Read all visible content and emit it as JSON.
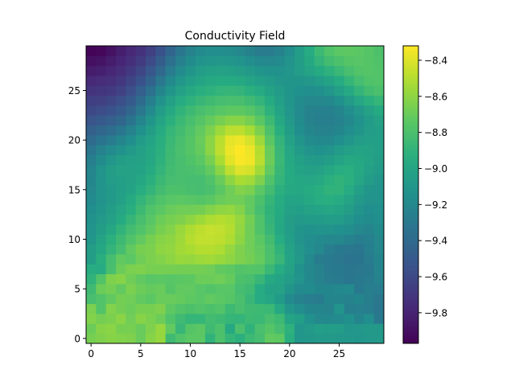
{
  "chart_data": {
    "type": "heatmap",
    "title": "Conductivity Field",
    "xlabel": "",
    "ylabel": "",
    "grid": false,
    "x_range": [
      0,
      29
    ],
    "y_range": [
      0,
      29
    ],
    "x_ticks": [
      0,
      5,
      10,
      15,
      20,
      25
    ],
    "y_ticks": [
      0,
      5,
      10,
      15,
      20,
      25
    ],
    "colormap": "viridis",
    "colorbar": {
      "position": "right",
      "range": [
        -9.97,
        -8.32
      ],
      "ticks": [
        -9.8,
        -9.6,
        -9.4,
        -9.2,
        -9.0,
        -8.8,
        -8.6,
        -8.4
      ]
    },
    "values": [
      [
        -8.66,
        -8.64,
        -8.62,
        -8.63,
        -8.64,
        -8.7,
        -8.62,
        -8.58,
        -8.84,
        -8.78,
        -8.74,
        -8.74,
        -8.9,
        -8.79,
        -8.88,
        -8.92,
        -8.85,
        -8.82,
        -8.72,
        -8.73,
        -8.93,
        -9.1,
        -9.09,
        -9.08,
        -9.08,
        -9.09,
        -9.09,
        -9.1,
        -9.09,
        -9.08
      ],
      [
        -8.69,
        -8.62,
        -8.61,
        -8.66,
        -8.66,
        -8.7,
        -8.64,
        -8.58,
        -8.72,
        -8.87,
        -8.76,
        -8.74,
        -8.84,
        -8.79,
        -8.97,
        -8.8,
        -8.9,
        -8.8,
        -8.76,
        -8.82,
        -8.91,
        -9.1,
        -9.08,
        -9.04,
        -9.06,
        -9.06,
        -9.1,
        -9.09,
        -9.08,
        -9.08
      ],
      [
        -8.63,
        -8.67,
        -8.65,
        -8.61,
        -8.68,
        -8.62,
        -8.65,
        -8.69,
        -8.78,
        -8.84,
        -8.88,
        -8.88,
        -8.83,
        -8.85,
        -8.88,
        -8.89,
        -8.85,
        -8.86,
        -8.81,
        -8.85,
        -9.01,
        -9.04,
        -9.14,
        -9.2,
        -9.19,
        -9.18,
        -9.14,
        -9.22,
        -9.16,
        -9.3
      ],
      [
        -8.65,
        -8.77,
        -8.63,
        -8.67,
        -8.69,
        -8.66,
        -8.66,
        -8.64,
        -8.73,
        -8.77,
        -8.79,
        -8.77,
        -8.79,
        -8.77,
        -8.85,
        -8.81,
        -8.84,
        -8.85,
        -8.86,
        -8.97,
        -9.1,
        -9.16,
        -9.21,
        -9.22,
        -9.23,
        -9.12,
        -9.26,
        -9.25,
        -9.27,
        -9.32
      ],
      [
        -8.81,
        -8.77,
        -8.72,
        -8.67,
        -8.68,
        -8.72,
        -8.74,
        -8.7,
        -8.7,
        -8.71,
        -8.73,
        -8.75,
        -8.72,
        -8.74,
        -8.76,
        -8.8,
        -8.87,
        -8.95,
        -8.99,
        -9.07,
        -9.18,
        -9.23,
        -9.27,
        -9.28,
        -9.21,
        -9.22,
        -9.24,
        -9.21,
        -9.26,
        -9.31
      ],
      [
        -8.84,
        -8.69,
        -8.67,
        -8.72,
        -8.65,
        -8.69,
        -8.71,
        -8.7,
        -8.76,
        -8.72,
        -8.72,
        -8.75,
        -8.77,
        -8.75,
        -8.75,
        -8.82,
        -8.84,
        -8.95,
        -9.02,
        -9.02,
        -9.11,
        -9.18,
        -9.17,
        -9.21,
        -9.21,
        -9.19,
        -9.18,
        -9.3,
        -9.26,
        -9.27
      ],
      [
        -8.9,
        -8.77,
        -8.64,
        -8.62,
        -8.68,
        -8.72,
        -8.75,
        -8.74,
        -8.75,
        -8.74,
        -8.73,
        -8.69,
        -8.69,
        -8.68,
        -8.71,
        -8.79,
        -8.81,
        -8.87,
        -8.97,
        -9.01,
        -9.06,
        -9.12,
        -9.19,
        -9.24,
        -9.28,
        -9.29,
        -9.32,
        -9.3,
        -9.28,
        -9.23
      ],
      [
        -8.94,
        -8.95,
        -8.81,
        -8.69,
        -8.65,
        -8.64,
        -8.66,
        -8.66,
        -8.66,
        -8.67,
        -8.67,
        -8.67,
        -8.68,
        -8.72,
        -8.73,
        -8.77,
        -8.76,
        -8.77,
        -8.86,
        -8.95,
        -9.02,
        -9.13,
        -9.2,
        -9.23,
        -9.29,
        -9.3,
        -9.32,
        -9.31,
        -9.3,
        -9.22
      ],
      [
        -9.05,
        -8.93,
        -8.82,
        -8.72,
        -8.74,
        -8.68,
        -8.65,
        -8.63,
        -8.6,
        -8.57,
        -8.58,
        -8.56,
        -8.55,
        -8.57,
        -8.6,
        -8.64,
        -8.67,
        -8.71,
        -8.79,
        -8.87,
        -9.0,
        -9.08,
        -9.19,
        -9.28,
        -9.29,
        -9.31,
        -9.34,
        -9.33,
        -9.28,
        -9.22
      ],
      [
        -9.05,
        -8.98,
        -8.89,
        -8.82,
        -8.72,
        -8.66,
        -8.65,
        -8.6,
        -8.59,
        -8.55,
        -8.53,
        -8.5,
        -8.5,
        -8.52,
        -8.58,
        -8.64,
        -8.68,
        -8.72,
        -8.8,
        -8.9,
        -9.02,
        -9.09,
        -9.16,
        -9.2,
        -9.27,
        -9.3,
        -9.31,
        -9.32,
        -9.26,
        -9.2
      ],
      [
        -9.1,
        -9.01,
        -8.92,
        -8.85,
        -8.78,
        -8.72,
        -8.66,
        -8.62,
        -8.6,
        -8.56,
        -8.5,
        -8.47,
        -8.47,
        -8.48,
        -8.52,
        -8.6,
        -8.68,
        -8.74,
        -8.83,
        -8.94,
        -9.04,
        -9.12,
        -9.16,
        -9.18,
        -9.2,
        -9.2,
        -9.24,
        -9.27,
        -9.25,
        -9.2
      ],
      [
        -9.12,
        -9.05,
        -8.98,
        -8.9,
        -8.83,
        -8.78,
        -8.72,
        -8.66,
        -8.63,
        -8.57,
        -8.52,
        -8.48,
        -8.46,
        -8.47,
        -8.5,
        -8.59,
        -8.68,
        -8.78,
        -8.87,
        -8.98,
        -9.06,
        -9.11,
        -9.13,
        -9.12,
        -9.12,
        -9.14,
        -9.16,
        -9.2,
        -9.22,
        -9.17
      ],
      [
        -9.13,
        -9.08,
        -9.03,
        -8.96,
        -8.88,
        -8.81,
        -8.75,
        -8.69,
        -8.66,
        -8.64,
        -8.6,
        -8.56,
        -8.52,
        -8.5,
        -8.52,
        -8.58,
        -8.67,
        -8.78,
        -8.89,
        -8.97,
        -9.05,
        -9.08,
        -9.07,
        -9.07,
        -9.06,
        -9.06,
        -9.1,
        -9.15,
        -9.17,
        -9.15
      ],
      [
        -9.15,
        -9.1,
        -9.05,
        -8.99,
        -8.93,
        -8.85,
        -8.78,
        -8.74,
        -8.7,
        -8.68,
        -8.68,
        -8.67,
        -8.63,
        -8.6,
        -8.59,
        -8.63,
        -8.72,
        -8.82,
        -8.9,
        -8.96,
        -9.03,
        -9.04,
        -9.02,
        -9.01,
        -8.99,
        -9.0,
        -9.05,
        -9.12,
        -9.15,
        -9.14
      ],
      [
        -9.18,
        -9.12,
        -9.08,
        -9.03,
        -8.96,
        -8.89,
        -8.83,
        -8.78,
        -8.75,
        -8.74,
        -8.75,
        -8.76,
        -8.74,
        -8.7,
        -8.68,
        -8.68,
        -8.72,
        -8.79,
        -8.88,
        -8.95,
        -9.0,
        -9.0,
        -8.97,
        -8.94,
        -8.93,
        -8.95,
        -9.01,
        -9.08,
        -9.12,
        -9.12
      ],
      [
        -9.2,
        -9.12,
        -9.08,
        -9.04,
        -9.0,
        -8.94,
        -8.89,
        -8.83,
        -8.79,
        -8.79,
        -8.81,
        -8.82,
        -8.8,
        -8.74,
        -8.68,
        -8.63,
        -8.65,
        -8.74,
        -8.83,
        -8.92,
        -8.97,
        -8.98,
        -8.96,
        -8.93,
        -8.9,
        -8.9,
        -8.95,
        -9.04,
        -9.1,
        -9.12
      ],
      [
        -9.21,
        -9.12,
        -9.06,
        -9.04,
        -9.02,
        -8.98,
        -8.92,
        -8.86,
        -8.82,
        -8.81,
        -8.82,
        -8.82,
        -8.78,
        -8.7,
        -8.6,
        -8.53,
        -8.55,
        -8.64,
        -8.78,
        -8.89,
        -8.96,
        -8.98,
        -8.99,
        -8.97,
        -8.92,
        -8.9,
        -8.92,
        -8.99,
        -9.06,
        -9.1
      ],
      [
        -9.22,
        -9.12,
        -9.05,
        -9.02,
        -9.02,
        -9.01,
        -8.96,
        -8.89,
        -8.83,
        -8.81,
        -8.8,
        -8.78,
        -8.72,
        -8.61,
        -8.48,
        -8.4,
        -8.42,
        -8.55,
        -8.72,
        -8.87,
        -8.96,
        -9.0,
        -9.03,
        -9.02,
        -8.98,
        -8.94,
        -8.93,
        -8.97,
        -9.03,
        -9.07
      ],
      [
        -9.26,
        -9.17,
        -9.1,
        -9.05,
        -9.03,
        -9.02,
        -8.98,
        -8.91,
        -8.84,
        -8.81,
        -8.78,
        -8.74,
        -8.66,
        -8.53,
        -8.39,
        -8.33,
        -8.35,
        -8.49,
        -8.69,
        -8.86,
        -8.97,
        -9.03,
        -9.07,
        -9.08,
        -9.05,
        -9.0,
        -8.97,
        -8.98,
        -9.01,
        -9.05
      ],
      [
        -9.32,
        -9.24,
        -9.18,
        -9.13,
        -9.08,
        -9.03,
        -8.98,
        -8.92,
        -8.85,
        -8.8,
        -8.76,
        -8.71,
        -8.61,
        -8.48,
        -8.36,
        -8.32,
        -8.36,
        -8.5,
        -8.7,
        -8.87,
        -8.99,
        -9.07,
        -9.12,
        -9.14,
        -9.12,
        -9.07,
        -9.03,
        -9.01,
        -9.02,
        -9.04
      ],
      [
        -9.39,
        -9.33,
        -9.28,
        -9.22,
        -9.15,
        -9.07,
        -9.0,
        -8.93,
        -8.86,
        -8.81,
        -8.76,
        -8.7,
        -8.61,
        -8.49,
        -8.38,
        -8.36,
        -8.42,
        -8.56,
        -8.74,
        -8.89,
        -9.02,
        -9.11,
        -9.17,
        -9.19,
        -9.19,
        -9.15,
        -9.1,
        -9.06,
        -9.04,
        -9.04
      ],
      [
        -9.46,
        -9.42,
        -9.38,
        -9.32,
        -9.24,
        -9.14,
        -9.05,
        -8.96,
        -8.88,
        -8.83,
        -8.78,
        -8.72,
        -8.65,
        -8.56,
        -8.49,
        -8.48,
        -8.54,
        -8.65,
        -8.79,
        -8.93,
        -9.05,
        -9.15,
        -9.21,
        -9.24,
        -9.24,
        -9.21,
        -9.16,
        -9.11,
        -9.06,
        -9.04
      ],
      [
        -9.53,
        -9.5,
        -9.47,
        -9.42,
        -9.33,
        -9.22,
        -9.11,
        -9.01,
        -8.92,
        -8.86,
        -8.81,
        -8.76,
        -8.71,
        -8.66,
        -8.62,
        -8.62,
        -8.66,
        -8.74,
        -8.85,
        -8.97,
        -9.08,
        -9.17,
        -9.23,
        -9.26,
        -9.26,
        -9.24,
        -9.19,
        -9.13,
        -9.07,
        -9.02
      ],
      [
        -9.6,
        -9.58,
        -9.55,
        -9.5,
        -9.42,
        -9.31,
        -9.18,
        -9.06,
        -8.97,
        -8.9,
        -8.85,
        -8.81,
        -8.78,
        -8.75,
        -8.73,
        -8.73,
        -8.76,
        -8.82,
        -8.91,
        -9.01,
        -9.1,
        -9.18,
        -9.23,
        -9.25,
        -9.25,
        -9.22,
        -9.16,
        -9.09,
        -9.02,
        -8.96
      ],
      [
        -9.66,
        -9.65,
        -9.62,
        -9.57,
        -9.5,
        -9.39,
        -9.26,
        -9.13,
        -9.03,
        -8.96,
        -8.91,
        -8.87,
        -8.84,
        -8.82,
        -8.81,
        -8.81,
        -8.84,
        -8.89,
        -8.96,
        -9.04,
        -9.11,
        -9.17,
        -9.2,
        -9.2,
        -9.19,
        -9.14,
        -9.07,
        -8.99,
        -8.92,
        -8.88
      ],
      [
        -9.72,
        -9.71,
        -9.69,
        -9.64,
        -9.57,
        -9.47,
        -9.35,
        -9.22,
        -9.11,
        -9.03,
        -8.97,
        -8.93,
        -8.91,
        -8.89,
        -8.88,
        -8.89,
        -8.92,
        -8.96,
        -9.02,
        -9.07,
        -9.11,
        -9.14,
        -9.15,
        -9.14,
        -9.1,
        -9.04,
        -8.97,
        -8.89,
        -8.83,
        -8.8
      ],
      [
        -9.78,
        -9.76,
        -9.74,
        -9.7,
        -9.63,
        -9.55,
        -9.44,
        -9.31,
        -9.19,
        -9.1,
        -9.04,
        -9.0,
        -8.97,
        -8.96,
        -8.96,
        -8.97,
        -9.0,
        -9.04,
        -9.07,
        -9.1,
        -9.11,
        -9.11,
        -9.09,
        -9.06,
        -9.01,
        -8.95,
        -8.88,
        -8.82,
        -8.78,
        -8.77
      ],
      [
        -9.84,
        -9.82,
        -9.79,
        -9.75,
        -9.69,
        -9.62,
        -9.52,
        -9.4,
        -9.28,
        -9.18,
        -9.11,
        -9.06,
        -9.03,
        -9.02,
        -9.03,
        -9.05,
        -9.08,
        -9.11,
        -9.13,
        -9.13,
        -9.1,
        -9.06,
        -9.01,
        -8.96,
        -8.91,
        -8.86,
        -8.81,
        -8.77,
        -8.76,
        -8.77
      ],
      [
        -9.9,
        -9.88,
        -9.84,
        -9.79,
        -9.74,
        -9.68,
        -9.59,
        -9.48,
        -9.36,
        -9.25,
        -9.17,
        -9.12,
        -9.1,
        -9.09,
        -9.1,
        -9.12,
        -9.16,
        -9.19,
        -9.2,
        -9.18,
        -9.12,
        -9.05,
        -8.97,
        -8.89,
        -8.83,
        -8.79,
        -8.76,
        -8.75,
        -8.76,
        -8.78
      ],
      [
        -9.95,
        -9.94,
        -9.89,
        -9.83,
        -9.78,
        -9.73,
        -9.65,
        -9.55,
        -9.43,
        -9.32,
        -9.23,
        -9.18,
        -9.16,
        -9.16,
        -9.17,
        -9.2,
        -9.24,
        -9.28,
        -9.28,
        -9.24,
        -9.16,
        -9.06,
        -8.95,
        -8.85,
        -8.78,
        -8.74,
        -8.73,
        -8.74,
        -8.76,
        -8.79
      ]
    ]
  }
}
